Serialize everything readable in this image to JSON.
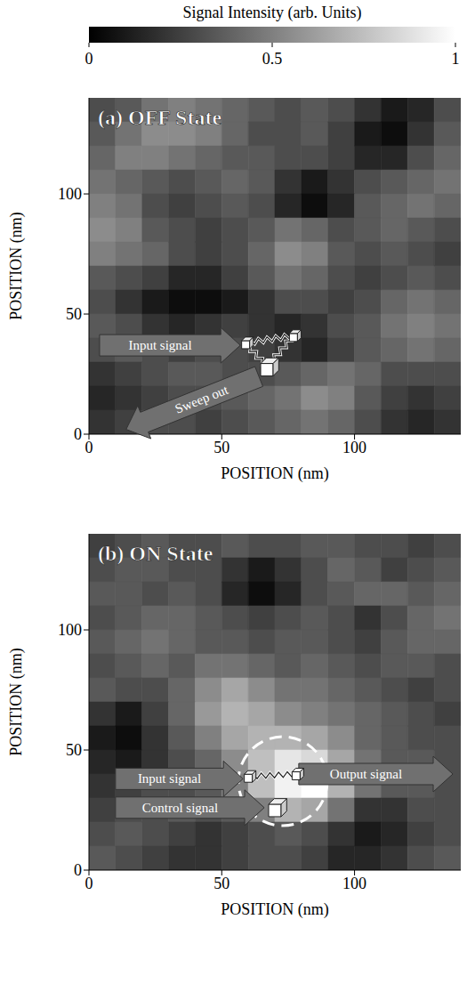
{
  "colorbar": {
    "title": "Signal Intensity (arb. Units)",
    "range": [
      0,
      1
    ],
    "ticks": [
      0,
      0.5,
      1
    ]
  },
  "chart_data": [
    {
      "type": "heatmap",
      "title": "(a) OFF State",
      "x_label": "POSITION (nm)",
      "y_label": "POSITION (nm)",
      "xlim": [
        0,
        140
      ],
      "ylim": [
        0,
        140
      ],
      "xticks": [
        0,
        50,
        100
      ],
      "yticks": [
        0,
        50,
        100
      ],
      "x_bins": [
        0,
        10,
        20,
        30,
        40,
        50,
        60,
        70,
        80,
        90,
        100,
        110,
        120,
        130,
        140
      ],
      "y_bins": [
        140,
        130,
        120,
        110,
        100,
        90,
        80,
        70,
        60,
        50,
        40,
        30,
        20,
        10,
        0
      ],
      "cells": [
        [
          0.3,
          0.35,
          0.45,
          0.5,
          0.45,
          0.4,
          0.35,
          0.3,
          0.35,
          0.3,
          0.2,
          0.1,
          0.15,
          0.3
        ],
        [
          0.35,
          0.45,
          0.55,
          0.55,
          0.5,
          0.4,
          0.3,
          0.3,
          0.35,
          0.25,
          0.1,
          0.05,
          0.2,
          0.35
        ],
        [
          0.4,
          0.5,
          0.5,
          0.45,
          0.4,
          0.35,
          0.35,
          0.3,
          0.3,
          0.25,
          0.15,
          0.15,
          0.3,
          0.4
        ],
        [
          0.45,
          0.4,
          0.35,
          0.3,
          0.35,
          0.4,
          0.35,
          0.2,
          0.1,
          0.2,
          0.3,
          0.35,
          0.4,
          0.45
        ],
        [
          0.5,
          0.45,
          0.3,
          0.25,
          0.3,
          0.35,
          0.3,
          0.15,
          0.05,
          0.15,
          0.35,
          0.4,
          0.45,
          0.4
        ],
        [
          0.55,
          0.5,
          0.35,
          0.3,
          0.25,
          0.3,
          0.35,
          0.45,
          0.4,
          0.3,
          0.35,
          0.4,
          0.35,
          0.3
        ],
        [
          0.5,
          0.45,
          0.4,
          0.3,
          0.25,
          0.3,
          0.4,
          0.55,
          0.5,
          0.35,
          0.3,
          0.35,
          0.3,
          0.25
        ],
        [
          0.35,
          0.3,
          0.25,
          0.15,
          0.15,
          0.25,
          0.35,
          0.45,
          0.4,
          0.3,
          0.25,
          0.3,
          0.35,
          0.3
        ],
        [
          0.3,
          0.2,
          0.1,
          0.05,
          0.05,
          0.1,
          0.2,
          0.3,
          0.3,
          0.25,
          0.3,
          0.4,
          0.45,
          0.4
        ],
        [
          0.35,
          0.3,
          0.2,
          0.15,
          0.2,
          0.25,
          0.2,
          0.15,
          0.2,
          0.3,
          0.35,
          0.45,
          0.5,
          0.45
        ],
        [
          0.3,
          0.35,
          0.3,
          0.25,
          0.3,
          0.3,
          0.25,
          0.2,
          0.15,
          0.25,
          0.35,
          0.4,
          0.45,
          0.4
        ],
        [
          0.2,
          0.25,
          0.3,
          0.35,
          0.35,
          0.3,
          0.3,
          0.35,
          0.4,
          0.45,
          0.4,
          0.3,
          0.3,
          0.3
        ],
        [
          0.15,
          0.2,
          0.25,
          0.3,
          0.3,
          0.35,
          0.4,
          0.45,
          0.55,
          0.5,
          0.35,
          0.25,
          0.2,
          0.25
        ],
        [
          0.2,
          0.25,
          0.3,
          0.3,
          0.25,
          0.3,
          0.35,
          0.4,
          0.45,
          0.4,
          0.3,
          0.2,
          0.15,
          0.2
        ]
      ],
      "annotations": [
        "Input signal",
        "Sweep out"
      ]
    },
    {
      "type": "heatmap",
      "title": "(b) ON State",
      "x_label": "POSITION (nm)",
      "y_label": "POSITION (nm)",
      "xlim": [
        0,
        140
      ],
      "ylim": [
        0,
        140
      ],
      "xticks": [
        0,
        50,
        100
      ],
      "yticks": [
        0,
        50,
        100
      ],
      "x_bins": [
        0,
        10,
        20,
        30,
        40,
        50,
        60,
        70,
        80,
        90,
        100,
        110,
        120,
        130,
        140
      ],
      "y_bins": [
        140,
        130,
        120,
        110,
        100,
        90,
        80,
        70,
        60,
        50,
        40,
        30,
        20,
        10,
        0
      ],
      "cells": [
        [
          0.25,
          0.3,
          0.35,
          0.3,
          0.3,
          0.35,
          0.3,
          0.3,
          0.35,
          0.35,
          0.3,
          0.3,
          0.25,
          0.3
        ],
        [
          0.3,
          0.35,
          0.35,
          0.3,
          0.3,
          0.2,
          0.1,
          0.2,
          0.3,
          0.4,
          0.35,
          0.25,
          0.3,
          0.35
        ],
        [
          0.35,
          0.35,
          0.3,
          0.35,
          0.3,
          0.15,
          0.05,
          0.15,
          0.3,
          0.35,
          0.4,
          0.4,
          0.35,
          0.4
        ],
        [
          0.3,
          0.35,
          0.4,
          0.4,
          0.35,
          0.3,
          0.25,
          0.3,
          0.35,
          0.3,
          0.2,
          0.3,
          0.4,
          0.45
        ],
        [
          0.35,
          0.4,
          0.45,
          0.4,
          0.35,
          0.35,
          0.3,
          0.35,
          0.35,
          0.3,
          0.25,
          0.35,
          0.4,
          0.4
        ],
        [
          0.3,
          0.35,
          0.4,
          0.35,
          0.45,
          0.45,
          0.4,
          0.35,
          0.4,
          0.35,
          0.3,
          0.35,
          0.35,
          0.3
        ],
        [
          0.35,
          0.3,
          0.3,
          0.4,
          0.55,
          0.65,
          0.55,
          0.45,
          0.45,
          0.4,
          0.35,
          0.3,
          0.25,
          0.3
        ],
        [
          0.2,
          0.1,
          0.25,
          0.4,
          0.6,
          0.7,
          0.65,
          0.55,
          0.5,
          0.45,
          0.4,
          0.35,
          0.3,
          0.25
        ],
        [
          0.1,
          0.05,
          0.2,
          0.35,
          0.5,
          0.65,
          0.7,
          0.7,
          0.65,
          0.55,
          0.4,
          0.35,
          0.3,
          0.3
        ],
        [
          0.15,
          0.1,
          0.2,
          0.3,
          0.4,
          0.55,
          0.75,
          0.9,
          0.85,
          0.65,
          0.45,
          0.35,
          0.35,
          0.3
        ],
        [
          0.2,
          0.25,
          0.3,
          0.3,
          0.35,
          0.5,
          0.75,
          0.95,
          1.0,
          0.7,
          0.45,
          0.35,
          0.35,
          0.3
        ],
        [
          0.25,
          0.3,
          0.3,
          0.35,
          0.3,
          0.35,
          0.5,
          0.7,
          0.65,
          0.45,
          0.2,
          0.2,
          0.3,
          0.3
        ],
        [
          0.3,
          0.35,
          0.3,
          0.25,
          0.2,
          0.25,
          0.3,
          0.35,
          0.3,
          0.2,
          0.1,
          0.15,
          0.25,
          0.3
        ],
        [
          0.35,
          0.3,
          0.25,
          0.2,
          0.2,
          0.25,
          0.3,
          0.3,
          0.25,
          0.15,
          0.15,
          0.2,
          0.3,
          0.35
        ]
      ],
      "annotations": [
        "Input signal",
        "Output signal",
        "Control signal"
      ]
    }
  ]
}
